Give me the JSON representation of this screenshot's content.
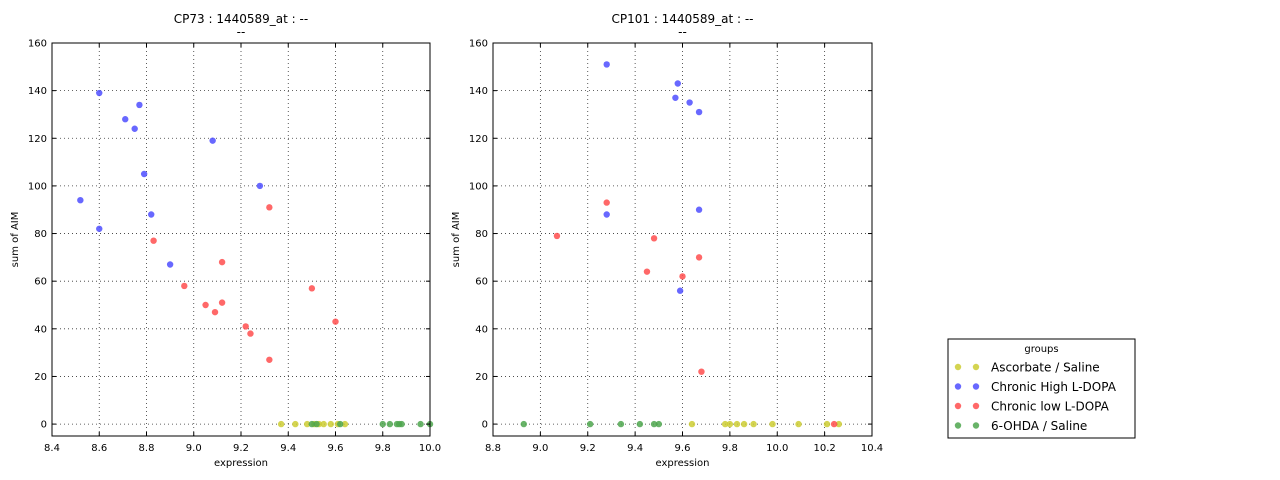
{
  "colors": {
    "Ascorbate / Saline": "#cccc33",
    "Chronic High L-DOPA": "#4d4dff",
    "Chronic low L-DOPA": "#ff4d4d",
    "6-OHDA / Saline": "#4da64d"
  },
  "legend": {
    "title": "groups",
    "placement": "bottom-right, outside plots",
    "entries": [
      "Ascorbate / Saline",
      "Chronic High L-DOPA",
      "Chronic low L-DOPA",
      "6-OHDA / Saline"
    ]
  },
  "chart_data": [
    {
      "type": "scatter",
      "title": "CP73 : 1440589_at : --",
      "subtitle": "--",
      "xlabel": "expression",
      "ylabel": "sum of AIM",
      "xlim": [
        8.4,
        10.0
      ],
      "ylim": [
        -5,
        160
      ],
      "xticks": [
        "8.4",
        "8.6",
        "8.8",
        "9.0",
        "9.2",
        "9.4",
        "9.6",
        "9.8",
        "10.0"
      ],
      "yticks": [
        "0",
        "20",
        "40",
        "60",
        "80",
        "100",
        "120",
        "140",
        "160"
      ],
      "grid": true,
      "series": [
        {
          "name": "Chronic High L-DOPA",
          "points": [
            [
              8.52,
              94
            ],
            [
              8.6,
              139
            ],
            [
              8.6,
              82
            ],
            [
              8.71,
              128
            ],
            [
              8.75,
              124
            ],
            [
              8.77,
              134
            ],
            [
              8.79,
              105
            ],
            [
              8.82,
              88
            ],
            [
              8.9,
              67
            ],
            [
              9.08,
              119
            ],
            [
              9.28,
              100
            ]
          ]
        },
        {
          "name": "Chronic low L-DOPA",
          "points": [
            [
              8.83,
              77
            ],
            [
              8.96,
              58
            ],
            [
              9.05,
              50
            ],
            [
              9.09,
              47
            ],
            [
              9.12,
              68
            ],
            [
              9.12,
              51
            ],
            [
              9.22,
              41
            ],
            [
              9.24,
              38
            ],
            [
              9.32,
              91
            ],
            [
              9.32,
              27
            ],
            [
              9.5,
              57
            ],
            [
              9.6,
              43
            ]
          ]
        },
        {
          "name": "Ascorbate / Saline",
          "points": [
            [
              9.37,
              0
            ],
            [
              9.43,
              0
            ],
            [
              9.48,
              0
            ],
            [
              9.51,
              0
            ],
            [
              9.53,
              0
            ],
            [
              9.55,
              0
            ],
            [
              9.58,
              0
            ],
            [
              9.61,
              0
            ],
            [
              9.64,
              0
            ]
          ]
        },
        {
          "name": "6-OHDA / Saline",
          "points": [
            [
              9.5,
              0
            ],
            [
              9.52,
              0
            ],
            [
              9.62,
              0
            ],
            [
              9.8,
              0
            ],
            [
              9.83,
              0
            ],
            [
              9.86,
              0
            ],
            [
              9.87,
              0
            ],
            [
              9.88,
              0
            ],
            [
              9.96,
              0
            ],
            [
              10.0,
              0
            ]
          ]
        }
      ]
    },
    {
      "type": "scatter",
      "title": "CP101 : 1440589_at : --",
      "subtitle": "--",
      "xlabel": "expression",
      "ylabel": "sum of AIM",
      "xlim": [
        8.8,
        10.4
      ],
      "ylim": [
        -5,
        160
      ],
      "xticks": [
        "8.8",
        "9.0",
        "9.2",
        "9.4",
        "9.6",
        "9.8",
        "10.0",
        "10.2",
        "10.4"
      ],
      "yticks": [
        "0",
        "20",
        "40",
        "60",
        "80",
        "100",
        "120",
        "140",
        "160"
      ],
      "grid": true,
      "series": [
        {
          "name": "Chronic High L-DOPA",
          "points": [
            [
              9.28,
              151
            ],
            [
              9.58,
              143
            ],
            [
              9.57,
              137
            ],
            [
              9.63,
              135
            ],
            [
              9.67,
              131
            ],
            [
              9.28,
              88
            ],
            [
              9.67,
              90
            ],
            [
              9.59,
              56
            ]
          ]
        },
        {
          "name": "Chronic low L-DOPA",
          "points": [
            [
              9.07,
              79
            ],
            [
              9.28,
              93
            ],
            [
              9.48,
              78
            ],
            [
              9.45,
              64
            ],
            [
              9.6,
              62
            ],
            [
              9.67,
              70
            ],
            [
              9.68,
              22
            ],
            [
              10.24,
              0
            ]
          ]
        },
        {
          "name": "Ascorbate / Saline",
          "points": [
            [
              9.64,
              0
            ],
            [
              9.78,
              0
            ],
            [
              9.8,
              0
            ],
            [
              9.83,
              0
            ],
            [
              9.86,
              0
            ],
            [
              9.9,
              0
            ],
            [
              9.98,
              0
            ],
            [
              10.09,
              0
            ],
            [
              10.21,
              0
            ],
            [
              10.26,
              0
            ]
          ]
        },
        {
          "name": "6-OHDA / Saline",
          "points": [
            [
              8.93,
              0
            ],
            [
              9.21,
              0
            ],
            [
              9.34,
              0
            ],
            [
              9.42,
              0
            ],
            [
              9.48,
              0
            ],
            [
              9.5,
              0
            ]
          ]
        }
      ]
    }
  ]
}
